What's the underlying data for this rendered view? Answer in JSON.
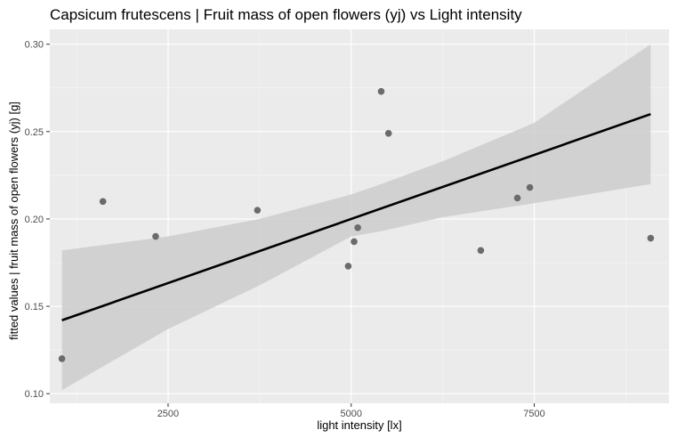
{
  "chart_data": {
    "type": "scatter",
    "title": "Capsicum frutescens | Fruit mass of open flowers (yj) vs Light intensity",
    "xlabel": "light intensity [lx]",
    "ylabel": "fitted values | fruit mass of open flowers (yj) [g]",
    "xlim": [
      885,
      9340
    ],
    "ylim": [
      0.0945,
      0.3085
    ],
    "x_ticks": [
      2500,
      5000,
      7500
    ],
    "x_minor_ticks": [
      1250,
      3750,
      6250,
      8750
    ],
    "y_ticks": [
      0.1,
      0.15,
      0.2,
      0.25,
      0.3
    ],
    "y_minor_ticks": [
      0.125,
      0.175,
      0.225,
      0.275
    ],
    "y_tick_labels": [
      "0.10",
      "0.15",
      "0.20",
      "0.25",
      "0.30"
    ],
    "x_tick_labels": [
      "2500",
      "5000",
      "7500"
    ],
    "grid": true,
    "points": [
      {
        "x": 1050,
        "y": 0.12
      },
      {
        "x": 1610,
        "y": 0.21
      },
      {
        "x": 2330,
        "y": 0.19
      },
      {
        "x": 3720,
        "y": 0.205
      },
      {
        "x": 4960,
        "y": 0.173
      },
      {
        "x": 5040,
        "y": 0.187
      },
      {
        "x": 5090,
        "y": 0.195
      },
      {
        "x": 5410,
        "y": 0.273
      },
      {
        "x": 5510,
        "y": 0.249
      },
      {
        "x": 6770,
        "y": 0.182
      },
      {
        "x": 7270,
        "y": 0.212
      },
      {
        "x": 7440,
        "y": 0.218
      },
      {
        "x": 9090,
        "y": 0.189
      }
    ],
    "fit_line": {
      "x": [
        1050,
        9090
      ],
      "y": [
        0.142,
        0.26
      ]
    },
    "confidence_band": {
      "x": [
        1050,
        2500,
        3750,
        5000,
        5410,
        6250,
        7500,
        9090
      ],
      "lower": [
        0.102,
        0.137,
        0.162,
        0.19,
        0.193,
        0.201,
        0.209,
        0.22
      ],
      "upper": [
        0.182,
        0.19,
        0.2,
        0.214,
        0.22,
        0.233,
        0.255,
        0.3
      ]
    },
    "colors": {
      "panel": "#ebebeb",
      "grid_major": "#ffffff",
      "grid_minor": "#f5f5f5",
      "points": "#6b6b6b",
      "fit_line": "#000000",
      "band": "#cccccc"
    }
  }
}
